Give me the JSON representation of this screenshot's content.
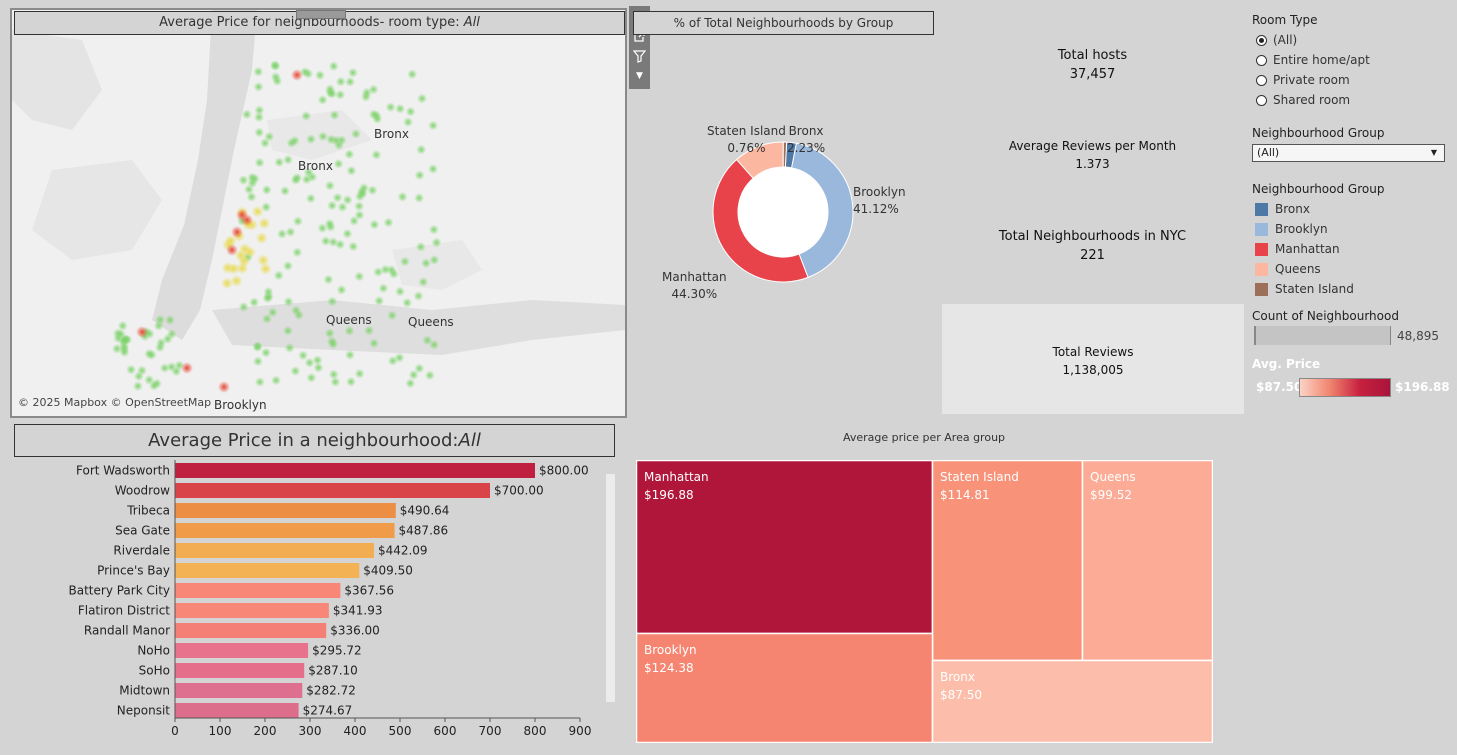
{
  "map": {
    "title_prefix": "Average Price for neighbourhoods- room type: ",
    "title_value": "All",
    "labels": [
      "Bronx",
      "Bronx",
      "Queens",
      "Queens",
      "Brooklyn"
    ],
    "attribution": "© 2025 Mapbox  © OpenStreetMap"
  },
  "donut": {
    "title": "% of Total Neighbourhoods by Group",
    "slices": [
      {
        "name": "Bronx",
        "pct": "2.23%",
        "value": 2.23,
        "color": "#4e79a7"
      },
      {
        "name": "Brooklyn",
        "pct": "41.12%",
        "value": 41.12,
        "color": "#9ab8dc"
      },
      {
        "name": "Manhattan",
        "pct": "44.30%",
        "value": 44.3,
        "color": "#e8434a"
      },
      {
        "name": "Queens",
        "pct": "",
        "value": 11.59,
        "color": "#fcb7a0"
      },
      {
        "name": "Staten Island",
        "pct": "0.76%",
        "value": 0.76,
        "color": "#9c6f58"
      }
    ]
  },
  "kpis": {
    "total_hosts_label": "Total hosts",
    "total_hosts_value": "37,457",
    "avg_reviews_label": "Average Reviews per Month",
    "avg_reviews_value": "1.373",
    "total_nbhd_label": "Total Neighbourhoods in NYC",
    "total_nbhd_value": "221",
    "total_reviews_label": "Total Reviews",
    "total_reviews_value": "1,138,005"
  },
  "filters": {
    "room_type_title": "Room Type",
    "room_types": [
      "(All)",
      "Entire home/apt",
      "Private room",
      "Shared room"
    ],
    "selected_room_type": 0,
    "ng_filter_title": "Neighbourhood Group",
    "ng_filter_value": "(All)",
    "ng_legend_title": "Neighbourhood Group",
    "ng_legend": [
      {
        "name": "Bronx",
        "color": "#4e79a7"
      },
      {
        "name": "Brooklyn",
        "color": "#9ab8dc"
      },
      {
        "name": "Manhattan",
        "color": "#e8434a"
      },
      {
        "name": "Queens",
        "color": "#fcb7a0"
      },
      {
        "name": "Staten Island",
        "color": "#9c6f58"
      }
    ],
    "count_title": "Count of Neighbourhood",
    "count_value": "48,895",
    "avg_price_title": "Avg. Price",
    "avg_price_min": "$87.50",
    "avg_price_max": "$196.88"
  },
  "bar_title_prefix": "Average Price in a neighbourhood:",
  "bar_title_value": "All",
  "treemap_title": "Average price per Area group",
  "chart_data": [
    {
      "type": "bar",
      "orientation": "horizontal",
      "categories": [
        "Fort Wadsworth",
        "Woodrow",
        "Tribeca",
        "Sea Gate",
        "Riverdale",
        "Prince's Bay",
        "Battery Park City",
        "Flatiron District",
        "Randall Manor",
        "NoHo",
        "SoHo",
        "Midtown",
        "Neponsit"
      ],
      "values": [
        800.0,
        700.0,
        490.64,
        487.86,
        442.09,
        409.5,
        367.56,
        341.93,
        336.0,
        295.72,
        287.1,
        282.72,
        274.67
      ],
      "value_labels": [
        "$800.00",
        "$700.00",
        "$490.64",
        "$487.86",
        "$442.09",
        "$409.50",
        "$367.56",
        "$341.93",
        "$336.00",
        "$295.72",
        "$287.10",
        "$282.72",
        "$274.67"
      ],
      "xticks": [
        0,
        100,
        200,
        300,
        400,
        500,
        600,
        700,
        800,
        900
      ],
      "xlim": [
        0,
        900
      ]
    },
    {
      "type": "treemap",
      "items": [
        {
          "name": "Manhattan",
          "label": "$196.88",
          "value": 196.88,
          "color": "#b0163a"
        },
        {
          "name": "Staten Island",
          "label": "$114.81",
          "value": 114.81,
          "color": "#f8937a"
        },
        {
          "name": "Queens",
          "label": "$99.52",
          "value": 99.52,
          "color": "#fbab96"
        },
        {
          "name": "Brooklyn",
          "label": "$124.38",
          "value": 124.38,
          "color": "#f58470"
        },
        {
          "name": "Bronx",
          "label": "$87.50",
          "value": 87.5,
          "color": "#fcbdaa"
        }
      ]
    },
    {
      "type": "pie",
      "subtype": "donut",
      "categories": [
        "Bronx",
        "Brooklyn",
        "Manhattan",
        "Queens",
        "Staten Island"
      ],
      "values": [
        2.23,
        41.12,
        44.3,
        11.59,
        0.76
      ]
    }
  ]
}
